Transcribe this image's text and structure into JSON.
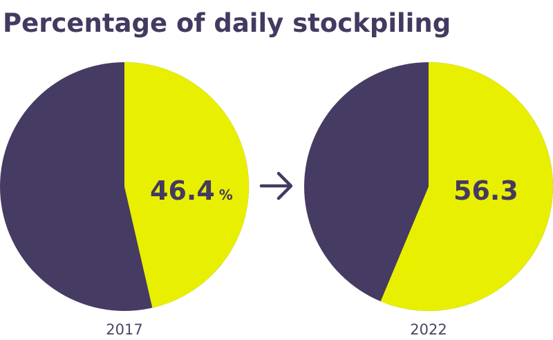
{
  "chart_data": {
    "type": "pie",
    "title": "Percentage of daily stockpiling",
    "pies": [
      {
        "label": "2017",
        "value": 46.4,
        "value_text": "46.4",
        "unit": "%"
      },
      {
        "label": "2022",
        "value": 56.3,
        "value_text": "56.3",
        "unit": ""
      }
    ],
    "colors": {
      "highlight": "#e9ef00",
      "remainder": "#463b63",
      "text": "#443a60"
    },
    "arrow_icon": "right-arrow-icon"
  }
}
